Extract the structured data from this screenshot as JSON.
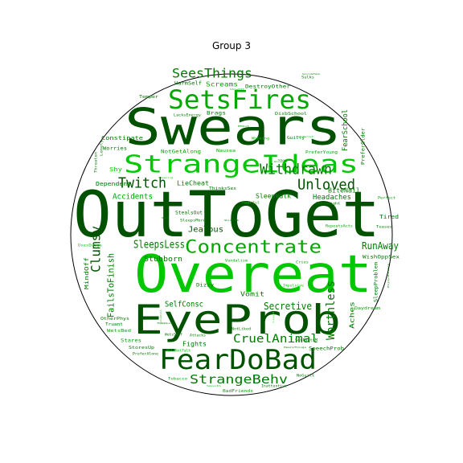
{
  "chart_data": {
    "type": "wordcloud",
    "title": "Group 3",
    "boundary": "circle",
    "palette": [
      "#005200",
      "#007a00",
      "#00a800",
      "#00c800",
      "#2ee62e"
    ],
    "words": [
      {
        "text": "OutToGet",
        "weight": 100,
        "tone": 0
      },
      {
        "text": "Swears",
        "weight": 78,
        "tone": 0
      },
      {
        "text": "Overeat",
        "weight": 80,
        "tone": 3
      },
      {
        "text": "EyeProb",
        "weight": 62,
        "tone": 0
      },
      {
        "text": "FearDoBad",
        "weight": 44,
        "tone": 0
      },
      {
        "text": "SetsFires",
        "weight": 40,
        "tone": 2
      },
      {
        "text": "StrangeIdeas",
        "weight": 38,
        "tone": 3
      },
      {
        "text": "Concentrate",
        "weight": 28,
        "tone": 2
      },
      {
        "text": "Unloved",
        "weight": 22,
        "tone": 0
      },
      {
        "text": "Twitch",
        "weight": 22,
        "tone": 0
      },
      {
        "text": "Withdrawn",
        "weight": 22,
        "tone": 1
      },
      {
        "text": "SeesThings",
        "weight": 20,
        "tone": 1
      },
      {
        "text": "StrangeBehv",
        "weight": 20,
        "tone": 1
      },
      {
        "text": "CruelAnimal",
        "weight": 18,
        "tone": 1
      },
      {
        "text": "Clumsy",
        "weight": 18,
        "tone": 0
      },
      {
        "text": "Worthless",
        "weight": 18,
        "tone": 1
      },
      {
        "text": "SleepsLess",
        "weight": 15,
        "tone": 1
      },
      {
        "text": "Secretive",
        "weight": 14,
        "tone": 1
      },
      {
        "text": "RunAway",
        "weight": 14,
        "tone": 1
      },
      {
        "text": "FailsToFinish",
        "weight": 13,
        "tone": 1
      },
      {
        "text": "Accidents",
        "weight": 12,
        "tone": 2
      },
      {
        "text": "Jealous",
        "weight": 12,
        "tone": 0
      },
      {
        "text": "Headaches",
        "weight": 11,
        "tone": 1
      },
      {
        "text": "SelfConsc",
        "weight": 11,
        "tone": 1
      },
      {
        "text": "Stubborn",
        "weight": 11,
        "tone": 1
      },
      {
        "text": "FearSchool",
        "weight": 10,
        "tone": 1
      },
      {
        "text": "Aches",
        "weight": 10,
        "tone": 1
      },
      {
        "text": "SleepWalk",
        "weight": 10,
        "tone": 1
      },
      {
        "text": "LieCheat",
        "weight": 10,
        "tone": 1
      },
      {
        "text": "Screams",
        "weight": 9,
        "tone": 2
      },
      {
        "text": "BiteNail",
        "weight": 9,
        "tone": 1
      },
      {
        "text": "Vomit",
        "weight": 9,
        "tone": 1
      },
      {
        "text": "Fights",
        "weight": 9,
        "tone": 1
      },
      {
        "text": "MindOff",
        "weight": 9,
        "tone": 1
      },
      {
        "text": "Tired",
        "weight": 8,
        "tone": 1
      },
      {
        "text": "Dependent",
        "weight": 8,
        "tone": 1
      },
      {
        "text": "Shy",
        "weight": 8,
        "tone": 3
      },
      {
        "text": "Constipate",
        "weight": 8,
        "tone": 1
      },
      {
        "text": "HarmSelf",
        "weight": 8,
        "tone": 1
      },
      {
        "text": "DestroyOther",
        "weight": 8,
        "tone": 1
      },
      {
        "text": "StealsOut",
        "weight": 8,
        "tone": 1
      },
      {
        "text": "WishOppSex",
        "weight": 7,
        "tone": 1
      },
      {
        "text": "Dizzy",
        "weight": 7,
        "tone": 1
      },
      {
        "text": "Stares",
        "weight": 7,
        "tone": 2
      },
      {
        "text": "SpeechProb",
        "weight": 7,
        "tone": 1
      },
      {
        "text": "SleepProblem",
        "weight": 7,
        "tone": 1
      },
      {
        "text": "PreferOlder",
        "weight": 7,
        "tone": 1
      },
      {
        "text": "NotGetAlong",
        "weight": 7,
        "tone": 2
      },
      {
        "text": "Brags",
        "weight": 7,
        "tone": 1
      },
      {
        "text": "Worries",
        "weight": 7,
        "tone": 1
      },
      {
        "text": "DisbSchool",
        "weight": 6,
        "tone": 1
      },
      {
        "text": "Guilty",
        "weight": 6,
        "tone": 1
      },
      {
        "text": "Nausea",
        "weight": 6,
        "tone": 2
      },
      {
        "text": "Temper",
        "weight": 6,
        "tone": 1
      },
      {
        "text": "PreferYoung",
        "weight": 6,
        "tone": 2
      },
      {
        "text": "Daydream",
        "weight": 6,
        "tone": 2
      },
      {
        "text": "Truant",
        "weight": 6,
        "tone": 1
      },
      {
        "text": "OtherPhys",
        "weight": 6,
        "tone": 1
      },
      {
        "text": "StoresUp",
        "weight": 6,
        "tone": 1
      },
      {
        "text": "BadFriends",
        "weight": 6,
        "tone": 2
      },
      {
        "text": "WetsBed",
        "weight": 6,
        "tone": 2
      },
      {
        "text": "ThinksSex",
        "weight": 6,
        "tone": 1
      },
      {
        "text": "SleepsMore",
        "weight": 6,
        "tone": 1
      },
      {
        "text": "LacksEnergy",
        "weight": 5,
        "tone": 1
      },
      {
        "text": "Lonely",
        "weight": 5,
        "tone": 1
      },
      {
        "text": "Threaten",
        "weight": 5,
        "tone": 1
      },
      {
        "text": "Teases",
        "weight": 5,
        "tone": 1
      },
      {
        "text": "Perfect",
        "weight": 5,
        "tone": 2
      },
      {
        "text": "Overweight",
        "weight": 5,
        "tone": 1
      },
      {
        "text": "RepeatsActs",
        "weight": 5,
        "tone": 2
      },
      {
        "text": "Impulsive",
        "weight": 5,
        "tone": 3
      },
      {
        "text": "NotLiked",
        "weight": 5,
        "tone": 1
      },
      {
        "text": "Cries",
        "weight": 5,
        "tone": 2
      },
      {
        "text": "Vandalism",
        "weight": 5,
        "tone": 2
      },
      {
        "text": "Fearful",
        "weight": 5,
        "tone": 3
      },
      {
        "text": "PreferAlone",
        "weight": 5,
        "tone": 1
      },
      {
        "text": "Tobacco",
        "weight": 5,
        "tone": 2
      },
      {
        "text": "Inattentive",
        "weight": 5,
        "tone": 1
      },
      {
        "text": "NoGuilt",
        "weight": 5,
        "tone": 1
      },
      {
        "text": "Sulks",
        "weight": 5,
        "tone": 1
      },
      {
        "text": "Whining",
        "weight": 5,
        "tone": 3
      },
      {
        "text": "SexPartsM",
        "weight": 5,
        "tone": 1
      },
      {
        "text": "UsesDrugs",
        "weight": 4,
        "tone": 3
      },
      {
        "text": "Attacks",
        "weight": 4,
        "tone": 1
      },
      {
        "text": "WetsSelf",
        "weight": 4,
        "tone": 1
      },
      {
        "text": "WillNotTalk",
        "weight": 4,
        "tone": 3
      },
      {
        "text": "Smooth",
        "weight": 4,
        "tone": 3
      },
      {
        "text": "Loud",
        "weight": 4,
        "tone": 4
      },
      {
        "text": "BMOut",
        "weight": 4,
        "tone": 2
      },
      {
        "text": "SitsStill",
        "weight": 4,
        "tone": 2
      },
      {
        "text": "EnjoysLittle",
        "weight": 4,
        "tone": 1
      },
      {
        "text": "HearsThings",
        "weight": 4,
        "tone": 1
      },
      {
        "text": "ShowOff",
        "weight": 3,
        "tone": 3
      },
      {
        "text": "Showoff",
        "weight": 3,
        "tone": 1
      },
      {
        "text": "SkinProb",
        "weight": 3,
        "tone": 1
      },
      {
        "text": "Sad",
        "weight": 3,
        "tone": 1
      },
      {
        "text": "SexPartsF",
        "weight": 3,
        "tone": 3
      },
      {
        "text": "ThumbSuck",
        "weight": 3,
        "tone": 1
      },
      {
        "text": "Stealing",
        "weight": 3,
        "tone": 3
      },
      {
        "text": "Alcohol",
        "weight": 3,
        "tone": 1
      },
      {
        "text": "SuicideTalk",
        "weight": 3,
        "tone": 1
      }
    ]
  }
}
